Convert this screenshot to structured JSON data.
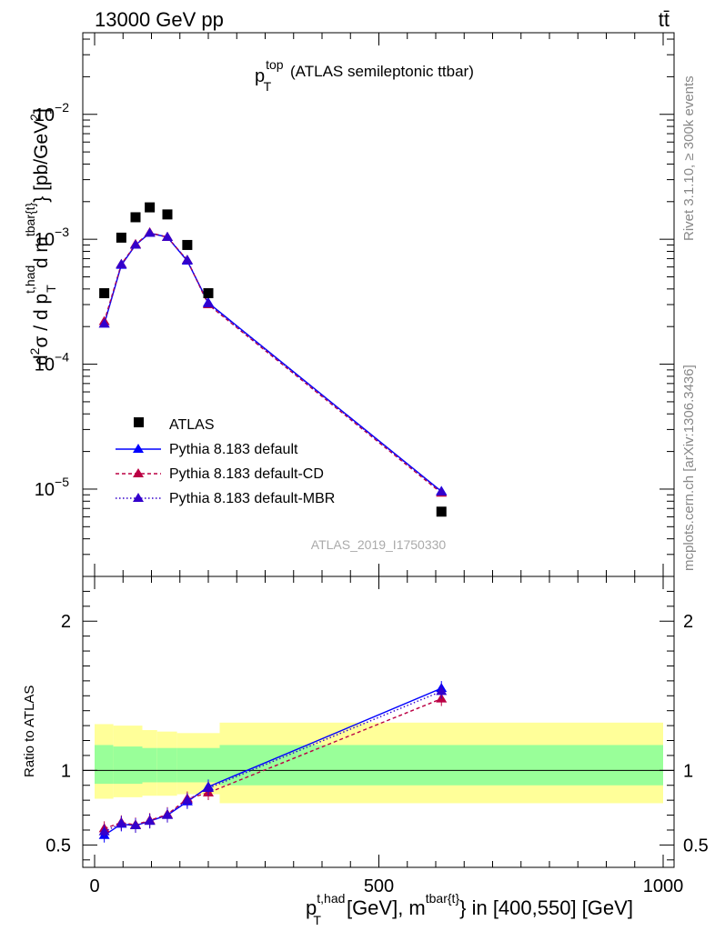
{
  "header": {
    "left": "13000 GeV pp",
    "right": "tt̄"
  },
  "side_labels": {
    "rivet": "Rivet 3.1.10, ≥ 300k events",
    "mcplots": "mcplots.cern.ch [arXiv:1306.3436]"
  },
  "chart_data": {
    "type": "scatter",
    "title_main": "p",
    "title_sup": "top",
    "title_sub": "T",
    "title_rest": "(ATLAS semileptonic ttbar)",
    "watermark": "ATLAS_2019_I1750330",
    "xlim": [
      0,
      1000
    ],
    "x_ticks": [
      "0",
      "500",
      "1000"
    ],
    "xlabel": {
      "p": "p",
      "sup": "t,had",
      "sub": "T",
      "mid": "[GeV], m",
      "sup2": "tbar{t}",
      "rest": "} in [400,550] [GeV]"
    },
    "ylabel": {
      "d2": "d",
      "two": "2",
      "sigma": "σ / d p",
      "sup": "t,had",
      "sub": "T",
      "dm": "d m",
      "sup2": "tbar{t}",
      "rest": "} [pb/GeV",
      "sq": "2",
      "close": "]"
    },
    "ylim_log": [
      2e-06,
      0.045
    ],
    "y_ticks": [
      {
        "value": 1e-05,
        "base": "10",
        "exp": "−5"
      },
      {
        "value": 0.0001,
        "base": "10",
        "exp": "−4"
      },
      {
        "value": 0.001,
        "base": "10",
        "exp": "−3"
      },
      {
        "value": 0.01,
        "base": "10",
        "exp": "−2"
      }
    ],
    "legend": [
      {
        "name": "ATLAS"
      },
      {
        "name": "Pythia 8.183 default"
      },
      {
        "name": "Pythia 8.183 default-CD"
      },
      {
        "name": "Pythia 8.183 default-MBR"
      }
    ],
    "series": [
      {
        "name": "ATLAS",
        "color": "#000000",
        "x": [
          17,
          47,
          72,
          97,
          128,
          163,
          200,
          610
        ],
        "y": [
          0.00037,
          0.00103,
          0.0015,
          0.0018,
          0.00158,
          0.0009,
          0.00037,
          6.6e-06
        ]
      },
      {
        "name": "Pythia 8.183 default",
        "color": "#0000ff",
        "x": [
          17,
          47,
          72,
          97,
          128,
          163,
          200,
          610
        ],
        "y": [
          0.00021,
          0.00062,
          0.0009,
          0.00112,
          0.00104,
          0.00067,
          0.00031,
          9.6e-06
        ]
      },
      {
        "name": "Pythia 8.183 default-CD",
        "color": "#bb0044",
        "x": [
          17,
          47,
          72,
          97,
          128,
          163,
          200,
          610
        ],
        "y": [
          0.00022,
          0.00063,
          0.00091,
          0.00113,
          0.00104,
          0.00068,
          0.0003,
          9.3e-06
        ]
      },
      {
        "name": "Pythia 8.183 default-MBR",
        "color": "#3300cc",
        "x": [
          17,
          47,
          72,
          97,
          128,
          163,
          200,
          610
        ],
        "y": [
          0.00021,
          0.00063,
          0.0009,
          0.00112,
          0.00104,
          0.00068,
          0.000305,
          9.5e-06
        ]
      }
    ],
    "ratio": {
      "ylabel": "Ratio to ATLAS",
      "ylim": [
        0.35,
        2.3
      ],
      "y_ticks": [
        "0.5",
        "1",
        "2"
      ],
      "y_tick_values": [
        0.5,
        1,
        2
      ],
      "bands": [
        {
          "x0": 0,
          "x1": 33,
          "yellow": [
            0.81,
            1.31
          ],
          "green": [
            0.91,
            1.17
          ]
        },
        {
          "x0": 33,
          "x1": 84,
          "yellow": [
            0.82,
            1.3
          ],
          "green": [
            0.91,
            1.16
          ]
        },
        {
          "x0": 84,
          "x1": 110,
          "yellow": [
            0.83,
            1.27
          ],
          "green": [
            0.92,
            1.15
          ]
        },
        {
          "x0": 110,
          "x1": 145,
          "yellow": [
            0.83,
            1.26
          ],
          "green": [
            0.92,
            1.15
          ]
        },
        {
          "x0": 145,
          "x1": 180,
          "yellow": [
            0.84,
            1.25
          ],
          "green": [
            0.92,
            1.15
          ]
        },
        {
          "x0": 180,
          "x1": 220,
          "yellow": [
            0.84,
            1.25
          ],
          "green": [
            0.92,
            1.15
          ]
        },
        {
          "x0": 220,
          "x1": 1000,
          "yellow": [
            0.78,
            1.32
          ],
          "green": [
            0.9,
            1.17
          ]
        }
      ],
      "series": [
        {
          "name": "Pythia 8.183 default",
          "color": "#0000ff",
          "x": [
            17,
            47,
            72,
            97,
            128,
            163,
            200,
            610
          ],
          "y": [
            0.565,
            0.64,
            0.63,
            0.66,
            0.7,
            0.79,
            0.89,
            1.55
          ]
        },
        {
          "name": "Pythia 8.183 default-CD",
          "color": "#bb0044",
          "x": [
            17,
            47,
            72,
            97,
            128,
            163,
            200,
            610
          ],
          "y": [
            0.61,
            0.65,
            0.635,
            0.665,
            0.705,
            0.81,
            0.85,
            1.48
          ]
        },
        {
          "name": "Pythia 8.183 default-MBR",
          "color": "#3300cc",
          "x": [
            17,
            47,
            72,
            97,
            128,
            163,
            200,
            610
          ],
          "y": [
            0.59,
            0.645,
            0.63,
            0.66,
            0.7,
            0.8,
            0.88,
            1.53
          ]
        }
      ]
    }
  }
}
